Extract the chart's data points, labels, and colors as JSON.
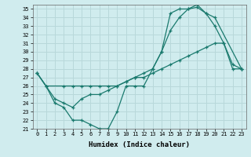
{
  "xlabel": "Humidex (Indice chaleur)",
  "ylabel": "",
  "xlim": [
    -0.5,
    23.5
  ],
  "ylim": [
    21,
    35.5
  ],
  "yticks": [
    21,
    22,
    23,
    24,
    25,
    26,
    27,
    28,
    29,
    30,
    31,
    32,
    33,
    34,
    35
  ],
  "xticks": [
    0,
    1,
    2,
    3,
    4,
    5,
    6,
    7,
    8,
    9,
    10,
    11,
    12,
    13,
    14,
    15,
    16,
    17,
    18,
    19,
    20,
    21,
    22,
    23
  ],
  "line_color": "#1a7a6e",
  "bg_color": "#d0ecee",
  "grid_color": "#b8d8da",
  "line1_x": [
    0,
    1,
    2,
    3,
    4,
    5,
    6,
    7,
    8,
    9,
    10,
    11,
    12,
    13,
    14,
    15,
    16,
    17,
    18,
    19,
    20,
    21,
    22,
    23
  ],
  "line1_y": [
    27.5,
    26,
    24,
    23.5,
    22,
    22,
    21.5,
    21,
    21,
    23,
    26,
    26,
    26,
    28,
    30,
    34.5,
    35,
    35,
    35.2,
    34.5,
    33,
    31,
    28.5,
    28
  ],
  "line2_x": [
    0,
    2,
    3,
    4,
    5,
    6,
    7,
    8,
    9,
    10,
    11,
    12,
    13,
    14,
    15,
    16,
    17,
    18,
    19,
    20,
    23
  ],
  "line2_y": [
    27.5,
    24.5,
    24,
    23.5,
    24.5,
    25,
    25,
    25.5,
    26,
    26.5,
    27,
    27.5,
    28,
    30,
    32.5,
    34,
    35,
    35.5,
    34.5,
    34,
    28
  ],
  "line3_x": [
    0,
    1,
    3,
    4,
    5,
    6,
    7,
    8,
    9,
    10,
    11,
    12,
    13,
    14,
    15,
    16,
    17,
    18,
    19,
    20,
    21,
    22,
    23
  ],
  "line3_y": [
    27.5,
    26,
    26,
    26,
    26,
    26,
    26,
    26,
    26,
    26.5,
    27,
    27,
    27.5,
    28,
    28.5,
    29,
    29.5,
    30,
    30.5,
    31,
    31,
    28,
    28
  ]
}
